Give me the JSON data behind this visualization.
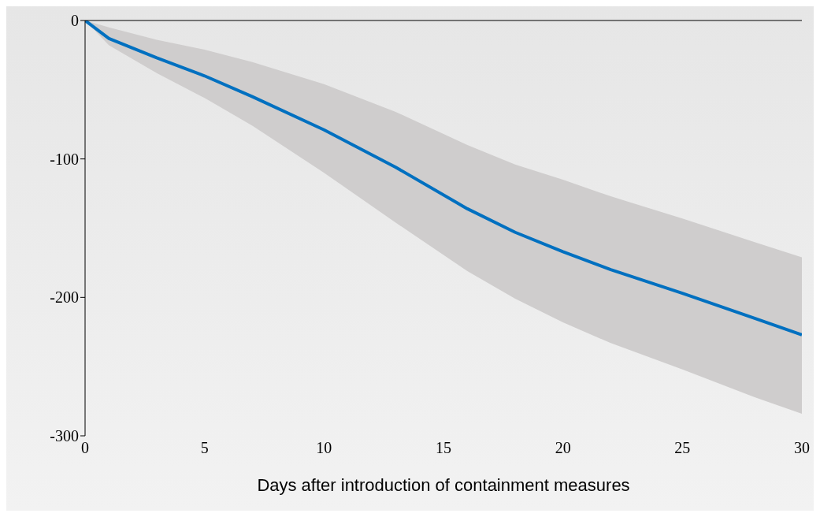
{
  "chart_data": {
    "type": "line",
    "xlabel": "Days after introduction of containment measures",
    "x": [
      0,
      1,
      3,
      5,
      7,
      10,
      13,
      16,
      18,
      20,
      22,
      25,
      28,
      30
    ],
    "series": [
      {
        "color": "#0070c0",
        "values": [
          0,
          -13,
          -27,
          -40,
          -55,
          -79,
          -106,
          -136,
          -153,
          -167,
          -180,
          -197,
          -215,
          -227
        ],
        "lower": [
          0,
          -18,
          -38,
          -56,
          -76,
          -110,
          -146,
          -181,
          -201,
          -218,
          -233,
          -252,
          -272,
          -284
        ],
        "upper": [
          0,
          -5,
          -14,
          -21,
          -30,
          -46,
          -66,
          -90,
          -104,
          -115,
          -127,
          -143,
          -160,
          -171
        ]
      }
    ],
    "xlim": [
      0,
      30
    ],
    "xticks": [
      0,
      5,
      10,
      15,
      20,
      25,
      30
    ],
    "ylim": [
      -300,
      0
    ],
    "yticks": [
      -300,
      -200,
      -100,
      0
    ],
    "grid": false,
    "legend": false,
    "marker": "none",
    "line_style": "solid"
  }
}
